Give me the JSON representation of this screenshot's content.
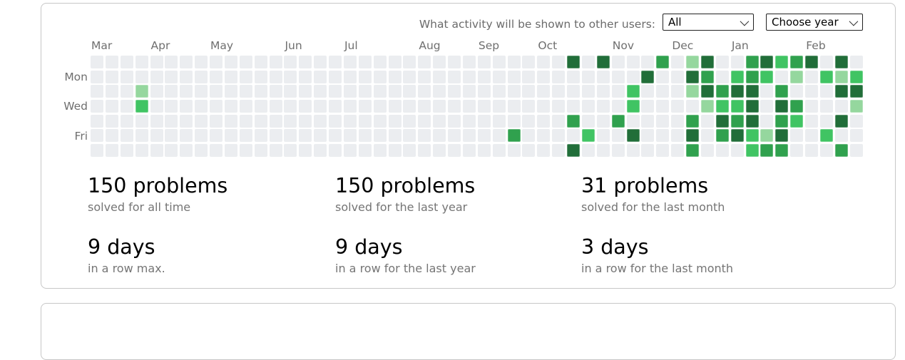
{
  "controls": {
    "label": "What activity will be shown to other users:",
    "activity_select": {
      "value": "All"
    },
    "year_select": {
      "value": "Choose year"
    },
    "icons": {
      "activity_select_chevron": "chevron-down",
      "year_select_chevron": "chevron-down"
    }
  },
  "heatmap": {
    "weeks": 52,
    "months": [
      {
        "label": "Mar",
        "col": 0
      },
      {
        "label": "Apr",
        "col": 4
      },
      {
        "label": "May",
        "col": 8
      },
      {
        "label": "Jun",
        "col": 13
      },
      {
        "label": "Jul",
        "col": 17
      },
      {
        "label": "Aug",
        "col": 22
      },
      {
        "label": "Sep",
        "col": 26
      },
      {
        "label": "Oct",
        "col": 30
      },
      {
        "label": "Nov",
        "col": 35
      },
      {
        "label": "Dec",
        "col": 39
      },
      {
        "label": "Jan",
        "col": 43
      },
      {
        "label": "Feb",
        "col": 48
      }
    ],
    "day_labels": [
      {
        "label": "Mon",
        "row": 1
      },
      {
        "label": "Wed",
        "row": 3
      },
      {
        "label": "Fri",
        "row": 5
      }
    ],
    "levels": {
      "0": "#ebedf0",
      "1": "#95d79e",
      "2": "#40c463",
      "3": "#30a14e",
      "4": "#216e39"
    },
    "rows": [
      "0000000000000000000000000000000040400030140034234040",
      "0000000000000000000000000000000000000400430232010212",
      "0001000000000000000000000000000000002000143440300044",
      "0002000000000000000000000000000000002000012240430001",
      "0000000000000000000000000000000030030000304340320040",
      "0000000000000000000000000000300002004000403421400200",
      "0000000000000000000000000000000040000000300023300030"
    ]
  },
  "stats": [
    {
      "value": "150 problems",
      "caption": "solved for all time"
    },
    {
      "value": "150 problems",
      "caption": "solved for the last year"
    },
    {
      "value": "31 problems",
      "caption": "solved for the last month"
    },
    {
      "value": "9 days",
      "caption": "in a row max."
    },
    {
      "value": "9 days",
      "caption": "in a row for the last year"
    },
    {
      "value": "3 days",
      "caption": "in a row for the last month"
    }
  ]
}
